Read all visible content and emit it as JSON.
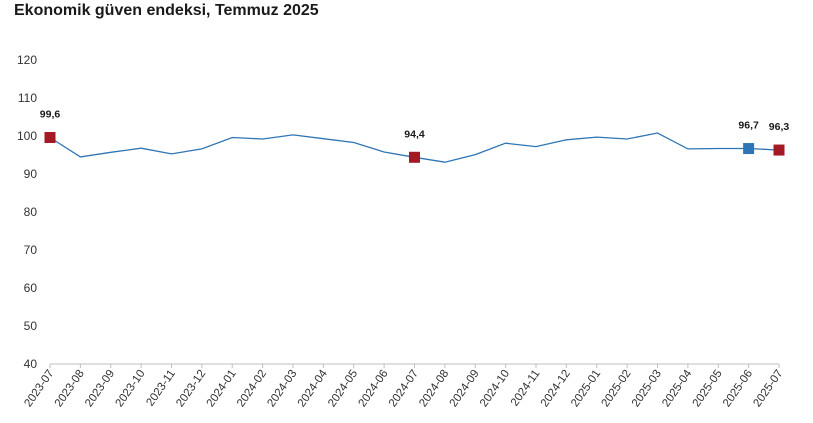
{
  "title": "Ekonomik güven endeksi, Temmuz 2025",
  "chart_data": {
    "type": "line",
    "title": "Ekonomik güven endeksi, Temmuz 2025",
    "xlabel": "",
    "ylabel": "",
    "ylim": [
      40,
      120
    ],
    "yticks": [
      40,
      50,
      60,
      70,
      80,
      90,
      100,
      110,
      120
    ],
    "grid": false,
    "categories": [
      "2023-07",
      "2023-08",
      "2023-09",
      "2023-10",
      "2023-11",
      "2023-12",
      "2024-01",
      "2024-02",
      "2024-03",
      "2024-04",
      "2024-05",
      "2024-06",
      "2024-07",
      "2024-08",
      "2024-09",
      "2024-10",
      "2024-11",
      "2024-12",
      "2025-01",
      "2025-02",
      "2025-03",
      "2025-04",
      "2025-05",
      "2025-06",
      "2025-07"
    ],
    "series": [
      {
        "values": [
          99.6,
          94.5,
          95.7,
          96.8,
          95.3,
          96.6,
          99.6,
          99.2,
          100.3,
          99.3,
          98.3,
          95.8,
          94.4,
          93.1,
          95.1,
          98.1,
          97.2,
          99.0,
          99.7,
          99.2,
          100.8,
          96.6,
          96.7,
          96.7,
          96.3
        ],
        "color": "#2e75b6"
      }
    ],
    "markers": [
      {
        "index": 0,
        "label": "99,6",
        "color": "#a31a24"
      },
      {
        "index": 12,
        "label": "94,4",
        "color": "#a31a24"
      },
      {
        "index": 23,
        "label": "96,7",
        "color": "#2e75b6"
      },
      {
        "index": 24,
        "label": "96,3",
        "color": "#a31a24"
      }
    ]
  }
}
